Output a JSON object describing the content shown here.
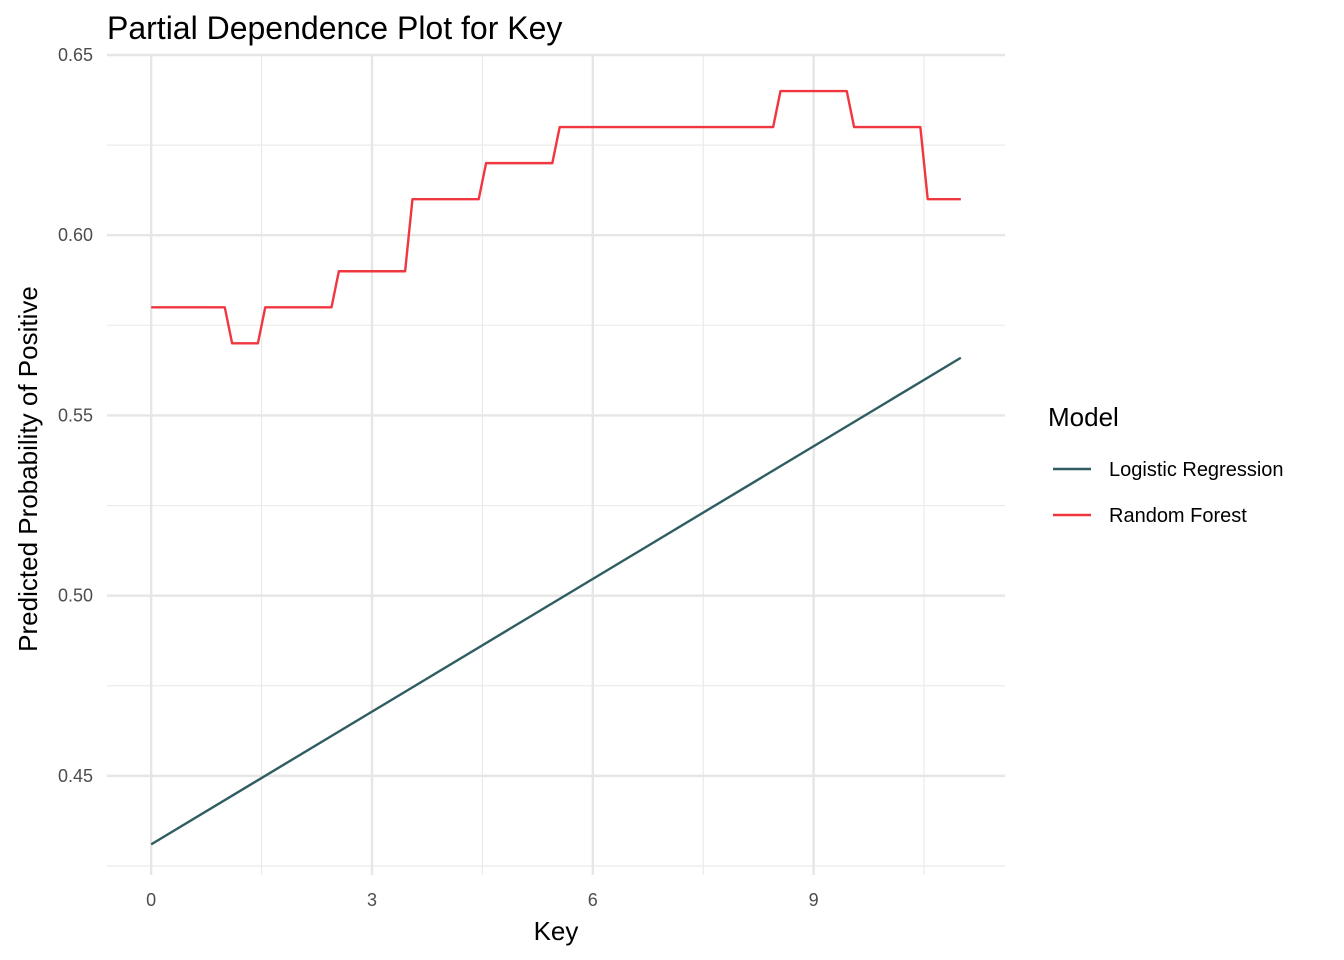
{
  "chart_data": {
    "type": "line",
    "title": "Partial Dependence Plot for Key",
    "xlabel": "Key",
    "ylabel": "Predicted Probability of Positive",
    "xlim": [
      -0.6,
      11.6
    ],
    "ylim": [
      0.4225,
      0.65
    ],
    "xticks": [
      0,
      3,
      6,
      9
    ],
    "xtick_labels": [
      "0",
      "3",
      "6",
      "9"
    ],
    "yticks": [
      0.45,
      0.5,
      0.55,
      0.6,
      0.65
    ],
    "ytick_labels": [
      "0.45",
      "0.50",
      "0.55",
      "0.60",
      "0.65"
    ],
    "grid": true,
    "legend": {
      "title": "Model",
      "position": "right"
    },
    "series": [
      {
        "name": "Logistic Regression",
        "color": "#2F5D62",
        "x": [
          0,
          11
        ],
        "y": [
          0.431,
          0.566
        ]
      },
      {
        "name": "Random Forest",
        "color": "#F0363F",
        "x": [
          0,
          1.0,
          1.1,
          1.45,
          1.55,
          2.45,
          2.55,
          3.45,
          3.55,
          4.45,
          4.55,
          5.45,
          5.55,
          8.45,
          8.55,
          9.45,
          9.55,
          10.45,
          10.55,
          11
        ],
        "y": [
          0.58,
          0.58,
          0.57,
          0.57,
          0.58,
          0.58,
          0.59,
          0.59,
          0.61,
          0.61,
          0.62,
          0.62,
          0.63,
          0.63,
          0.64,
          0.64,
          0.63,
          0.63,
          0.61,
          0.61
        ]
      }
    ]
  }
}
